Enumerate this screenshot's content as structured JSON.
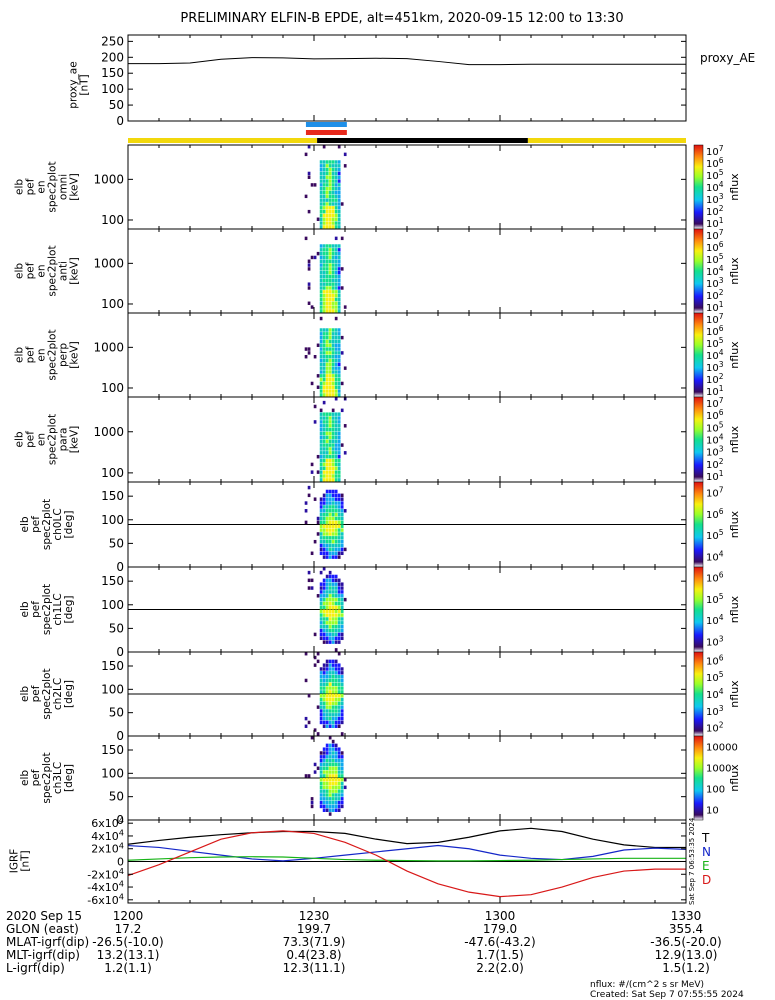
{
  "title": "PRELIMINARY ELFIN-B EPDE, alt=451km, 2020-09-15 12:00 to 13:30",
  "colors": {
    "yellow": "#f2d80c",
    "black": "#000000",
    "blue_bar": "#1e8fe8",
    "red_bar": "#e8291c",
    "grf_T": "#000000",
    "grf_N": "#1426c8",
    "grf_E": "#18b418",
    "grf_D": "#d81818"
  },
  "time_axis": {
    "ticks": [
      "1200",
      "1230",
      "1300",
      "1330"
    ],
    "tick_minutes": [
      0,
      30,
      60,
      90
    ],
    "range_minutes": [
      0,
      90
    ]
  },
  "ephemeris": {
    "date": "2020 Sep 15",
    "rows": [
      {
        "label": "GLON (east)",
        "values": [
          "17.2",
          "199.7",
          "179.0",
          "355.4"
        ]
      },
      {
        "label": "MLAT-igrf(dip)",
        "values": [
          "-26.5(-10.0)",
          "73.3(71.9)",
          "-47.6(-43.2)",
          "-36.5(-20.0)"
        ]
      },
      {
        "label": "MLT-igrf(dip)",
        "values": [
          "13.2(13.1)",
          "0.4(23.8)",
          "1.7(1.5)",
          "12.9(13.0)"
        ]
      },
      {
        "label": "L-igrf(dip)",
        "values": [
          "1.2(1.1)",
          "12.3(11.1)",
          "2.2(2.0)",
          "1.5(1.2)"
        ]
      }
    ]
  },
  "footer": {
    "units": "nflux: #/(cm^2 s sr MeV)",
    "created": "Created: Sat Sep  7 07:55:55 2024",
    "side_stamp": "Sat Sep  7 06:53:35 2024"
  },
  "chart_data": [
    {
      "type": "line",
      "panel": "proxy_ae",
      "ylabel": "proxy_ae [nT]",
      "legend": "proxy_AE",
      "ylim": [
        0,
        270
      ],
      "yticks": [
        "0",
        "50",
        "100",
        "150",
        "200",
        "250"
      ],
      "x": [
        0,
        5,
        10,
        15,
        20,
        25,
        30,
        35,
        40,
        45,
        50,
        55,
        60,
        65,
        70,
        75,
        80,
        85,
        90
      ],
      "values": [
        180,
        180,
        182,
        194,
        199,
        198,
        195,
        196,
        197,
        196,
        187,
        177,
        177,
        178,
        178,
        178,
        178,
        178,
        178
      ]
    },
    {
      "type": "bar",
      "panel": "status_bars",
      "segments": [
        {
          "color": "yellow",
          "start": 0,
          "end": 30.5
        },
        {
          "color": "black",
          "start": 30.5,
          "end": 64.5
        },
        {
          "color": "yellow",
          "start": 64.5,
          "end": 90
        }
      ],
      "science_zones": [
        {
          "color": "blue_bar",
          "start": 28.7,
          "end": 35.3
        },
        {
          "color": "red_bar",
          "start": 28.7,
          "end": 35.3
        }
      ]
    },
    {
      "type": "heatmap",
      "panel": "omni",
      "ylabel": "elb pef en spec2plot omni [keV]",
      "yticks": [
        "100",
        "1000"
      ],
      "ylog": true,
      "ylim": [
        60,
        7000
      ],
      "colorbar": {
        "label": "nflux",
        "ticks": [
          "10^1",
          "10^2",
          "10^3",
          "10^4",
          "10^5",
          "10^6",
          "10^7"
        ]
      }
    },
    {
      "type": "heatmap",
      "panel": "anti",
      "ylabel": "elb pef en spec2plot anti [keV]",
      "yticks": [
        "100",
        "1000"
      ],
      "ylog": true,
      "ylim": [
        60,
        7000
      ],
      "colorbar": {
        "label": "nflux",
        "ticks": [
          "10^1",
          "10^2",
          "10^3",
          "10^4",
          "10^5",
          "10^6",
          "10^7"
        ]
      }
    },
    {
      "type": "heatmap",
      "panel": "perp",
      "ylabel": "elb pef en spec2plot perp [keV]",
      "yticks": [
        "100",
        "1000"
      ],
      "ylog": true,
      "ylim": [
        60,
        7000
      ],
      "colorbar": {
        "label": "nflux",
        "ticks": [
          "10^1",
          "10^2",
          "10^3",
          "10^4",
          "10^5",
          "10^6",
          "10^7"
        ]
      }
    },
    {
      "type": "heatmap",
      "panel": "para",
      "ylabel": "elb pef en spec2plot para [keV]",
      "yticks": [
        "100",
        "1000"
      ],
      "ylog": true,
      "ylim": [
        60,
        7000
      ],
      "colorbar": {
        "label": "nflux",
        "ticks": [
          "10^1",
          "10^2",
          "10^3",
          "10^4",
          "10^5",
          "10^6",
          "10^7"
        ]
      }
    },
    {
      "type": "heatmap",
      "panel": "ch0LC",
      "ylabel": "elb pef spec2plot ch0LC [deg]",
      "yticks": [
        "0",
        "50",
        "100",
        "150"
      ],
      "ylim": [
        0,
        180
      ],
      "refline": 90,
      "colorbar": {
        "label": "nflux",
        "ticks": [
          "10^4",
          "10^5",
          "10^6",
          "10^7"
        ]
      }
    },
    {
      "type": "heatmap",
      "panel": "ch1LC",
      "ylabel": "elb pef spec2plot ch1LC [deg]",
      "yticks": [
        "0",
        "50",
        "100",
        "150"
      ],
      "ylim": [
        0,
        180
      ],
      "refline": 90,
      "colorbar": {
        "label": "nflux",
        "ticks": [
          "10^3",
          "10^4",
          "10^5",
          "10^6"
        ]
      }
    },
    {
      "type": "heatmap",
      "panel": "ch2LC",
      "ylabel": "elb pef spec2plot ch2LC [deg]",
      "yticks": [
        "0",
        "50",
        "100",
        "150"
      ],
      "ylim": [
        0,
        180
      ],
      "refline": 90,
      "colorbar": {
        "label": "nflux",
        "ticks": [
          "10^2",
          "10^3",
          "10^4",
          "10^5",
          "10^6"
        ]
      }
    },
    {
      "type": "heatmap",
      "panel": "ch3LC",
      "ylabel": "elb pef spec2plot ch3LC [deg]",
      "yticks": [
        "0",
        "50",
        "100",
        "150"
      ],
      "ylim": [
        0,
        180
      ],
      "refline": 90,
      "colorbar": {
        "label": "nflux",
        "ticks": [
          "10",
          "100",
          "1000",
          "10000"
        ]
      }
    },
    {
      "type": "line",
      "panel": "IGRF",
      "ylabel": "IGRF [nT]",
      "ylim": [
        -65000,
        65000
      ],
      "yticks": [
        "-6x10^4",
        "-4x10^4",
        "-2x10^4",
        "0",
        "2x10^4",
        "4x10^4",
        "6x10^4"
      ],
      "ytick_values": [
        -60000,
        -40000,
        -20000,
        0,
        20000,
        40000,
        60000
      ],
      "x": [
        0,
        5,
        10,
        15,
        20,
        25,
        30,
        35,
        40,
        45,
        50,
        55,
        60,
        65,
        70,
        75,
        80,
        85,
        90
      ],
      "series": [
        {
          "name": "T",
          "color": "grf_T",
          "values": [
            27000,
            33000,
            38000,
            42000,
            45000,
            47000,
            47000,
            44000,
            35000,
            28000,
            30000,
            38000,
            48000,
            52000,
            47000,
            35000,
            26000,
            22000,
            22000
          ]
        },
        {
          "name": "N",
          "color": "grf_N",
          "values": [
            25000,
            22000,
            16000,
            10000,
            4000,
            1000,
            5000,
            10000,
            15000,
            20000,
            25000,
            20000,
            10000,
            5000,
            3000,
            8000,
            18000,
            21000,
            19000
          ]
        },
        {
          "name": "E",
          "color": "grf_E",
          "values": [
            2000,
            4000,
            6000,
            7000,
            7500,
            7000,
            5000,
            3000,
            2000,
            1500,
            1000,
            1000,
            1500,
            2000,
            3000,
            4000,
            5000,
            5000,
            5000
          ]
        },
        {
          "name": "D",
          "color": "grf_D",
          "values": [
            -22000,
            -5000,
            15000,
            35000,
            45000,
            48000,
            44000,
            30000,
            10000,
            -15000,
            -35000,
            -48000,
            -55000,
            -52000,
            -40000,
            -25000,
            -15000,
            -12000,
            -12000
          ]
        }
      ]
    }
  ]
}
